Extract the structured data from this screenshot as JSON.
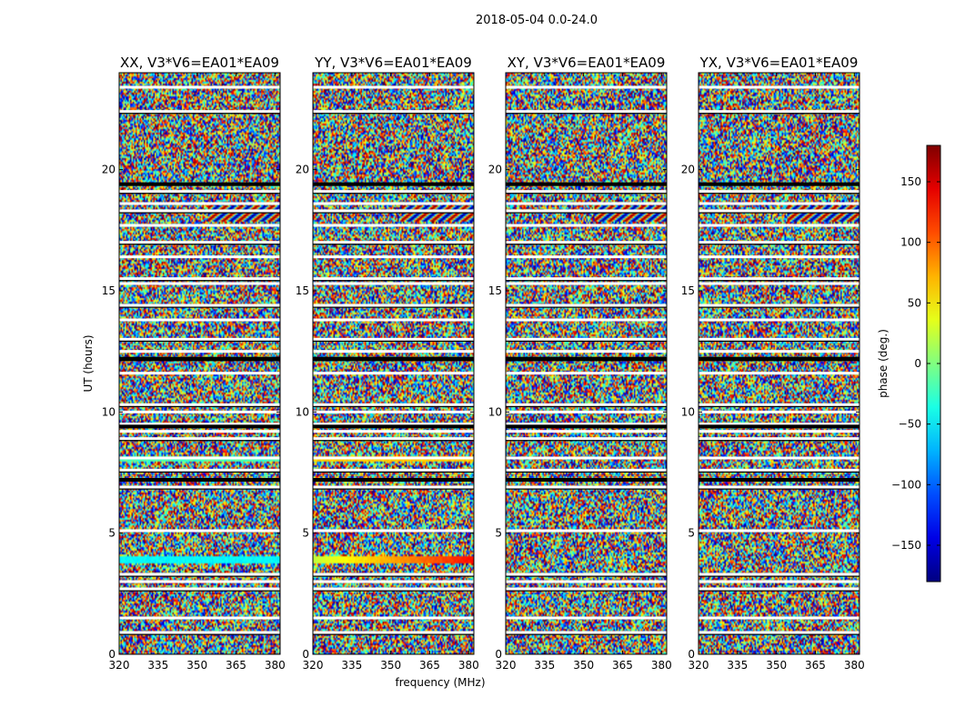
{
  "chart_data": {
    "type": "heatmap",
    "title": "2018-05-04 0.0-24.0",
    "xlabel": "frequency (MHz)",
    "ylabel": "UT (hours)",
    "xlim": [
      320,
      382
    ],
    "ylim": [
      0,
      24
    ],
    "x_ticks": [
      "320",
      "335",
      "350",
      "365",
      "380"
    ],
    "x_tick_values": [
      320,
      335,
      350,
      365,
      380
    ],
    "y_ticks": [
      "0",
      "5",
      "10",
      "15",
      "20"
    ],
    "y_tick_values": [
      0,
      5,
      10,
      15,
      20
    ],
    "panels": [
      {
        "title": "XX, V3*V6=EA01*EA09"
      },
      {
        "title": "YY, V3*V6=EA01*EA09"
      },
      {
        "title": "XY, V3*V6=EA01*EA09"
      },
      {
        "title": "YX, V3*V6=EA01*EA09"
      }
    ],
    "colorbar": {
      "label": "phase (deg.)",
      "range": [
        -180,
        180
      ],
      "ticks": [
        "−150",
        "−100",
        "−50",
        "0",
        "50",
        "100",
        "150"
      ],
      "tick_values": [
        -150,
        -100,
        -50,
        0,
        50,
        100,
        150
      ],
      "colormap": "jet"
    },
    "flagged_hours": [
      0.9,
      1.5,
      2.7,
      3.0,
      3.3,
      5.1,
      6.9,
      7.2,
      7.6,
      8.1,
      8.9,
      9.2,
      9.5,
      10.0,
      10.3,
      11.6,
      12.2,
      12.5,
      13.0,
      13.8,
      14.4,
      15.3,
      15.5,
      16.4,
      17.0,
      17.7,
      18.3,
      18.6,
      19.1,
      19.4,
      22.4,
      23.4
    ]
  }
}
